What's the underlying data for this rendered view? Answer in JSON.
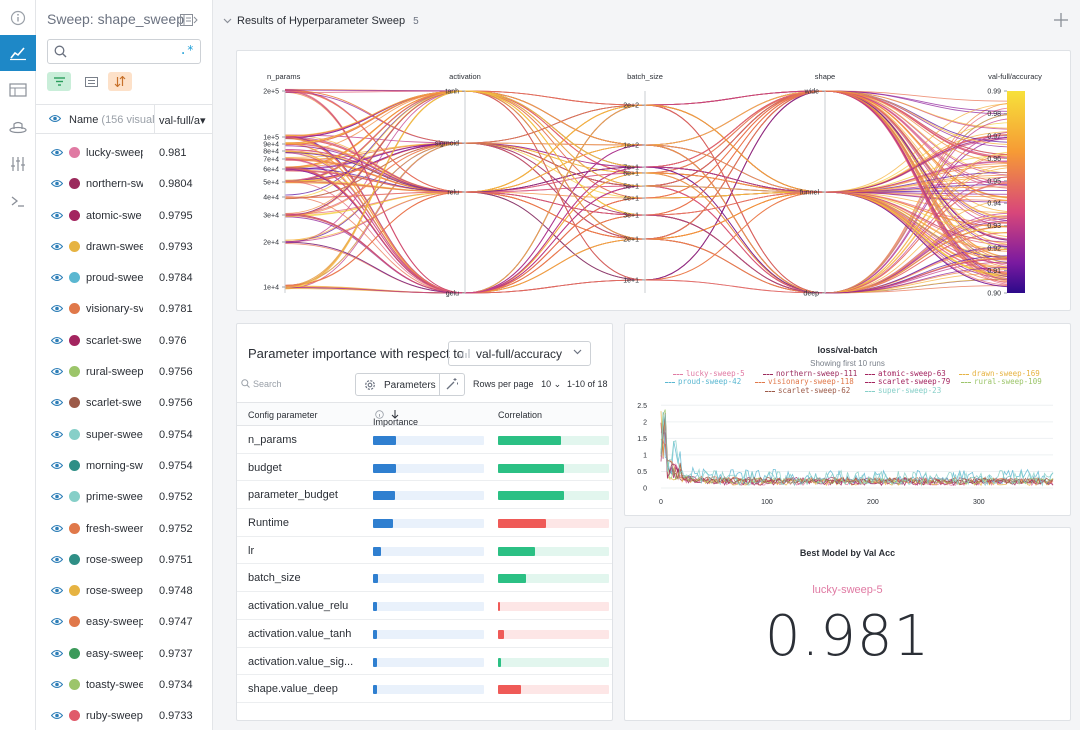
{
  "sweep_title": "Sweep: shape_sweep",
  "search": {
    "placeholder": "",
    "regex_symbol": ".*"
  },
  "list_header": {
    "name": "Name",
    "count_text": "(156 visual",
    "metric": "val-full/a▾"
  },
  "runs": [
    {
      "name": "lucky-sweep",
      "value": "0.981",
      "color": "#e07aa3"
    },
    {
      "name": "northern-sw",
      "value": "0.9804",
      "color": "#9b2a5c"
    },
    {
      "name": "atomic-swe",
      "value": "0.9795",
      "color": "#a3245f"
    },
    {
      "name": "drawn-swee",
      "value": "0.9793",
      "color": "#e6b342"
    },
    {
      "name": "proud-swee",
      "value": "0.9784",
      "color": "#5ab7d1"
    },
    {
      "name": "visionary-sv",
      "value": "0.9781",
      "color": "#e0784a"
    },
    {
      "name": "scarlet-swe",
      "value": "0.976",
      "color": "#a3245f"
    },
    {
      "name": "rural-sweep",
      "value": "0.9756",
      "color": "#9cc56a"
    },
    {
      "name": "scarlet-swe",
      "value": "0.9756",
      "color": "#9c5a48"
    },
    {
      "name": "super-swee",
      "value": "0.9754",
      "color": "#86cfc8"
    },
    {
      "name": "morning-sw",
      "value": "0.9754",
      "color": "#2f8f86"
    },
    {
      "name": "prime-swee",
      "value": "0.9752",
      "color": "#86cfc8"
    },
    {
      "name": "fresh-sweer",
      "value": "0.9752",
      "color": "#e0784a"
    },
    {
      "name": "rose-sweep",
      "value": "0.9751",
      "color": "#2f8f86"
    },
    {
      "name": "rose-sweep",
      "value": "0.9748",
      "color": "#e6b342"
    },
    {
      "name": "easy-sweep",
      "value": "0.9747",
      "color": "#e0784a"
    },
    {
      "name": "easy-sweep",
      "value": "0.9737",
      "color": "#3c9a5a"
    },
    {
      "name": "toasty-swee",
      "value": "0.9734",
      "color": "#9cc56a"
    },
    {
      "name": "ruby-sweep",
      "value": "0.9733",
      "color": "#e05a6a"
    }
  ],
  "section": {
    "title": "Results of Hyperparameter Sweep",
    "count": "5"
  },
  "parallel": {
    "axes": [
      "n_params",
      "activation",
      "batch_size",
      "shape",
      "val-full/accuracy"
    ],
    "n_params_ticks": [
      "2e+5",
      "1e+5",
      "9e+4",
      "8e+4",
      "7e+4",
      "6e+4",
      "5e+4",
      "4e+4",
      "3e+4",
      "2e+4",
      "1e+4"
    ],
    "batch_ticks": [
      "2e+2",
      "1e+2",
      "7e+1",
      "6e+1",
      "5e+1",
      "4e+1",
      "3e+1",
      "2e+1",
      "1e+1"
    ],
    "activation_ticks": [
      "tanh",
      "sigmoid",
      "relu",
      "gelu"
    ],
    "shape_ticks": [
      "wide",
      "funnel",
      "deep"
    ],
    "acc_ticks": [
      "0.99",
      "0.98",
      "0.97",
      "0.96",
      "0.95",
      "0.94",
      "0.93",
      "0.92",
      "0.91",
      "0.90"
    ]
  },
  "importance": {
    "title": "Parameter importance with respect to",
    "metric": "val-full/accuracy",
    "search_placeholder": "Search",
    "parameters_button": "Parameters",
    "rows_per_page": "Rows per page",
    "rows_value": "10",
    "range": "1-10 of 18",
    "columns": {
      "param": "Config parameter",
      "importance": "Importance",
      "correlation": "Correlation"
    },
    "rows": [
      {
        "name": "n_params",
        "importance": 0.2,
        "correlation": 0.55
      },
      {
        "name": "budget",
        "importance": 0.2,
        "correlation": 0.57
      },
      {
        "name": "parameter_budget",
        "importance": 0.19,
        "correlation": 0.57
      },
      {
        "name": "Runtime",
        "importance": 0.17,
        "correlation": -0.42
      },
      {
        "name": "lr",
        "importance": 0.07,
        "correlation": 0.32
      },
      {
        "name": "batch_size",
        "importance": 0.04,
        "correlation": 0.24
      },
      {
        "name": "activation.value_relu",
        "importance": 0.03,
        "correlation": -0.01
      },
      {
        "name": "activation.value_tanh",
        "importance": 0.03,
        "correlation": -0.05
      },
      {
        "name": "activation.value_sig...",
        "importance": 0.02,
        "correlation": 0.03
      },
      {
        "name": "shape.value_deep",
        "importance": 0.02,
        "correlation": -0.2
      }
    ],
    "colors": {
      "importance": "#2f7fd0",
      "importance_bg": "#e9f1fb",
      "positive": "#2bc084",
      "positive_bg": "#e2f6ee",
      "negative": "#ef5a57",
      "negative_bg": "#fde6e6"
    }
  },
  "chart_data": {
    "type": "line",
    "title": "loss/val-batch",
    "subtitle": "Showing first 10 runs",
    "xticks": [
      "0",
      "100",
      "200",
      "300"
    ],
    "yticks": [
      "0",
      "0.5",
      "1",
      "1.5",
      "2",
      "2.5"
    ],
    "xlim": [
      0,
      370
    ],
    "ylim": [
      0,
      2.6
    ],
    "series": [
      {
        "name": "lucky-sweep-5",
        "color": "#e07aa3"
      },
      {
        "name": "northern-sweep-111",
        "color": "#9b2a5c"
      },
      {
        "name": "atomic-sweep-63",
        "color": "#a3245f"
      },
      {
        "name": "drawn-sweep-169",
        "color": "#e6b342"
      },
      {
        "name": "proud-sweep-42",
        "color": "#5ab7d1"
      },
      {
        "name": "visionary-sweep-118",
        "color": "#e0784a"
      },
      {
        "name": "scarlet-sweep-79",
        "color": "#a3245f"
      },
      {
        "name": "rural-sweep-109",
        "color": "#9cc56a"
      },
      {
        "name": "scarlet-sweep-62",
        "color": "#9c5a48"
      },
      {
        "name": "super-sweep-23",
        "color": "#86cfc8"
      }
    ]
  },
  "best": {
    "title": "Best Model by Val Acc",
    "run": "lucky-sweep-5",
    "value": "0.981"
  }
}
